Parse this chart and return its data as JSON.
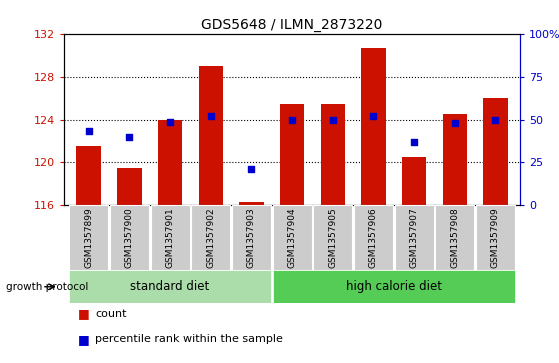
{
  "title": "GDS5648 / ILMN_2873220",
  "samples": [
    "GSM1357899",
    "GSM1357900",
    "GSM1357901",
    "GSM1357902",
    "GSM1357903",
    "GSM1357904",
    "GSM1357905",
    "GSM1357906",
    "GSM1357907",
    "GSM1357908",
    "GSM1357909"
  ],
  "counts": [
    121.5,
    119.5,
    124.0,
    129.0,
    116.3,
    125.5,
    125.5,
    130.7,
    120.5,
    124.5,
    126.0
  ],
  "percentiles": [
    43.5,
    40.0,
    48.5,
    52.0,
    21.0,
    50.0,
    50.0,
    52.5,
    37.0,
    48.0,
    50.0
  ],
  "ylim_left": [
    116,
    132
  ],
  "ylim_right": [
    0,
    100
  ],
  "yticks_left": [
    116,
    120,
    124,
    128,
    132
  ],
  "yticks_right": [
    0,
    25,
    50,
    75,
    100
  ],
  "bar_color": "#cc1100",
  "marker_color": "#0000cc",
  "standard_diet_color": "#aaddaa",
  "high_calorie_diet_color": "#55cc55",
  "tick_bg_color": "#cccccc",
  "std_diet_label": "standard diet",
  "hcd_label": "high calorie diet",
  "growth_protocol_label": "growth protocol",
  "legend_count": "count",
  "legend_pct": "percentile rank within the sample",
  "std_samples": [
    0,
    1,
    2,
    3,
    4
  ],
  "hcd_samples": [
    5,
    6,
    7,
    8,
    9,
    10
  ]
}
